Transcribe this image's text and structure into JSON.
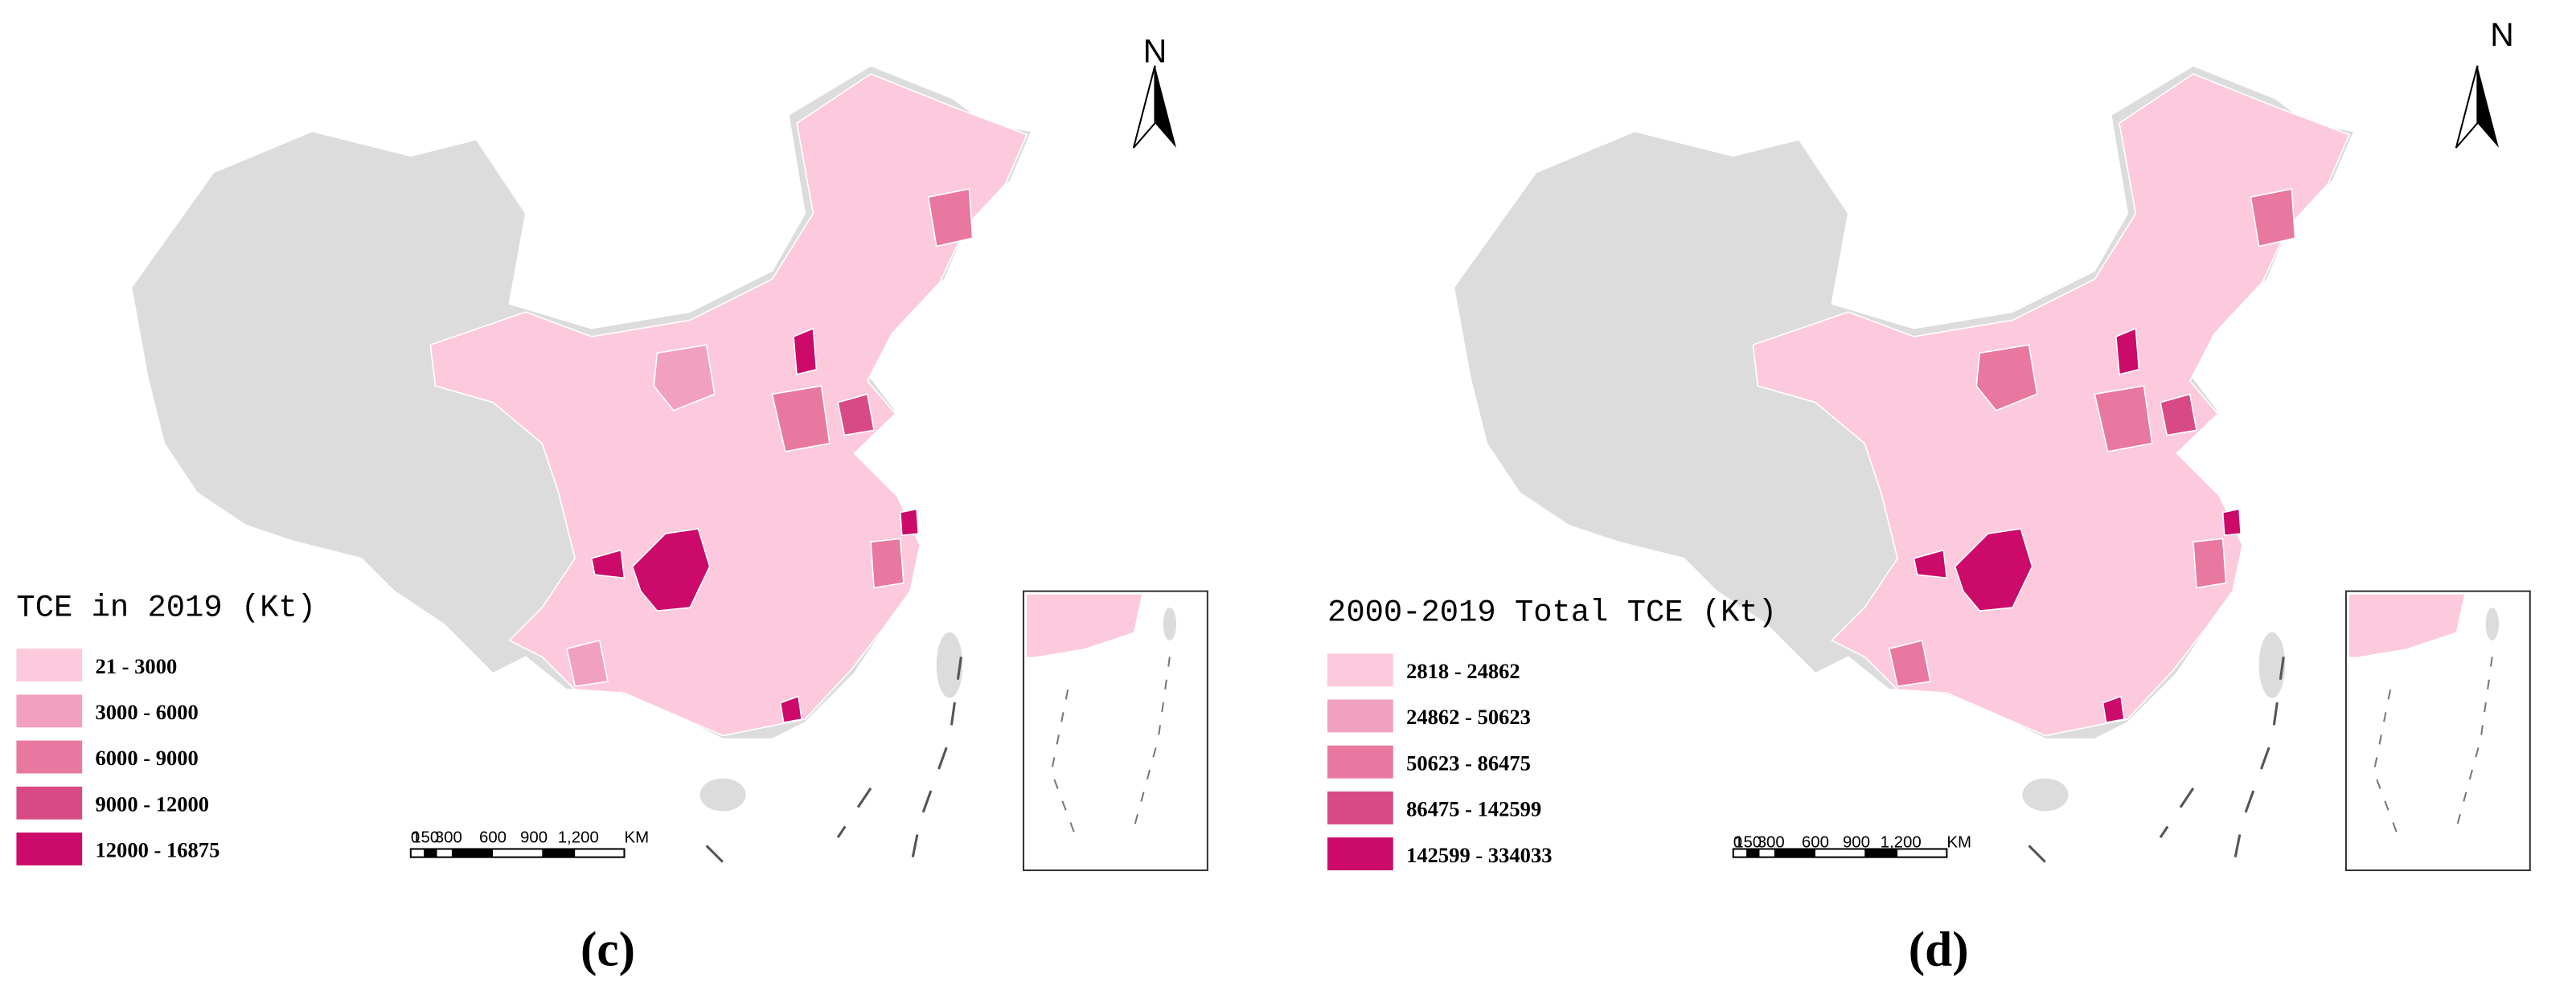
{
  "panels": [
    {
      "legend_title": "TCE in 2019 (Kt)",
      "legend": [
        {
          "label": "21 - 3000",
          "color": "#fcc9dd"
        },
        {
          "label": "3000 - 6000",
          "color": "#f2a0c0"
        },
        {
          "label": "6000 - 9000",
          "color": "#e8789f"
        },
        {
          "label": "9000 - 12000",
          "color": "#d84a86"
        },
        {
          "label": "12000 - 16875",
          "color": "#cc0a6a"
        }
      ],
      "scale_labels": [
        "0",
        "150",
        "300",
        "600",
        "900",
        "1,200",
        "KM"
      ],
      "north": "N",
      "caption": "(c)"
    },
    {
      "legend_title": "2000-2019 Total TCE (Kt)",
      "legend": [
        {
          "label": "2818 - 24862",
          "color": "#fcc9dd"
        },
        {
          "label": "24862 - 50623",
          "color": "#f2a0c0"
        },
        {
          "label": "50623 - 86475",
          "color": "#e8789f"
        },
        {
          "label": "86475 - 142599",
          "color": "#d84a86"
        },
        {
          "label": "142599 - 334033",
          "color": "#cc0a6a"
        }
      ],
      "scale_labels": [
        "0",
        "150",
        "300",
        "600",
        "900",
        "1,200",
        "KM"
      ],
      "north": "N",
      "caption": "(d)"
    }
  ]
}
